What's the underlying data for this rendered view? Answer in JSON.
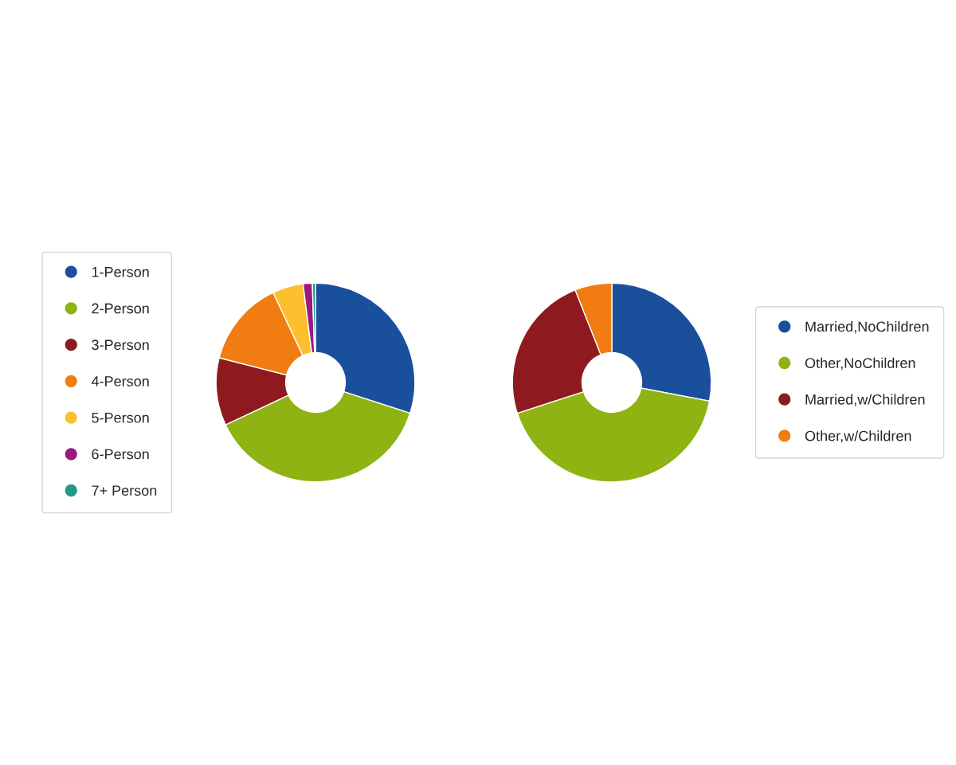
{
  "chart_data": [
    {
      "type": "donut",
      "categories": [
        "1-Person",
        "2-Person",
        "3-Person",
        "4-Person",
        "5-Person",
        "6-Person",
        "7+ Person"
      ],
      "values": [
        30,
        38,
        11,
        14,
        5,
        1.5,
        0.5
      ],
      "colors": [
        "#1a4f9c",
        "#8fb312",
        "#8e1a1f",
        "#f07c12",
        "#fcc02e",
        "#9c1a7c",
        "#1e9a8a"
      ],
      "legend": "left"
    },
    {
      "type": "donut",
      "categories": [
        "Married,NoChildren",
        "Other,NoChildren",
        "Married,w/Children",
        "Other,w/Children"
      ],
      "values": [
        28,
        42,
        24,
        6
      ],
      "colors": [
        "#1a4f9c",
        "#8fb312",
        "#8e1a1f",
        "#f07c12"
      ],
      "legend": "right"
    }
  ]
}
